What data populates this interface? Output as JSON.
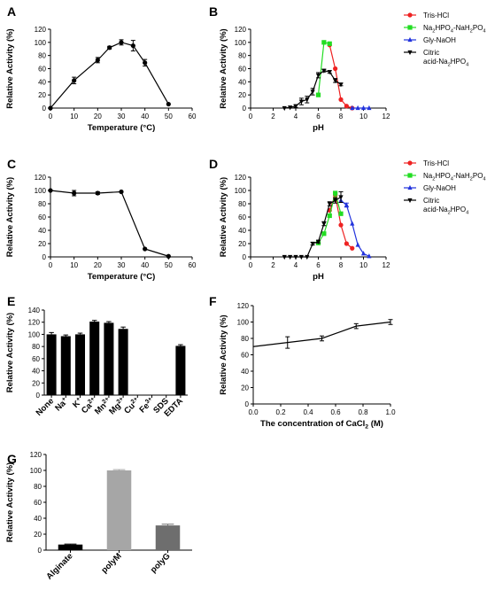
{
  "chart_data": [
    {
      "panel": "A",
      "type": "line",
      "xlabel": "Temperature (°C)",
      "ylabel": "Relative Activity (%)",
      "xlim": [
        0,
        60
      ],
      "ylim": [
        0,
        120
      ],
      "xticks": [
        "0",
        "10",
        "20",
        "30",
        "40",
        "50",
        "60"
      ],
      "yticks": [
        "0",
        "20",
        "40",
        "60",
        "80",
        "100",
        "120"
      ],
      "series": [
        {
          "color": "#000000",
          "marker": "circle",
          "x": [
            0,
            10,
            20,
            25,
            30,
            35,
            40,
            50
          ],
          "y": [
            0,
            42,
            73,
            92,
            100,
            95,
            69,
            6
          ],
          "err": [
            0,
            5,
            4,
            2,
            4,
            8,
            5,
            0
          ]
        }
      ]
    },
    {
      "panel": "B",
      "type": "line",
      "xlabel": "pH",
      "ylabel": "Relative Activity (%)",
      "xlim": [
        0,
        12
      ],
      "ylim": [
        0,
        120
      ],
      "xticks": [
        "0",
        "2",
        "4",
        "6",
        "8",
        "10",
        "12"
      ],
      "yticks": [
        "0",
        "20",
        "40",
        "60",
        "80",
        "100",
        "120"
      ],
      "legend": "right",
      "series": [
        {
          "name": "Tris-HCl",
          "color": "#ee2222",
          "marker": "circle",
          "x": [
            7,
            7.5,
            8,
            8.5,
            9
          ],
          "y": [
            96,
            60,
            13,
            3,
            0
          ],
          "err": [
            0,
            0,
            0,
            0,
            0
          ]
        },
        {
          "name": "Na2HPO4-NaH2PO4",
          "color": "#22dd22",
          "marker": "square",
          "x": [
            6,
            6.5,
            7
          ],
          "y": [
            20,
            100,
            98
          ],
          "err": [
            0,
            0,
            0
          ]
        },
        {
          "name": "Gly-NaOH",
          "color": "#2233dd",
          "marker": "triangle-up",
          "x": [
            9,
            9.5,
            10,
            10.5
          ],
          "y": [
            0,
            0,
            0,
            0
          ],
          "err": [
            0,
            0,
            0,
            0
          ]
        },
        {
          "name": "Citric acid-Na2HPO4",
          "color": "#000000",
          "marker": "triangle-down",
          "x": [
            3,
            3.5,
            4,
            4.5,
            5,
            5.5,
            6,
            6.5,
            7,
            7.5,
            8
          ],
          "y": [
            0,
            1,
            3,
            10,
            13,
            25,
            50,
            57,
            55,
            42,
            36
          ],
          "err": [
            0,
            0,
            2,
            5,
            5,
            5,
            4,
            2,
            2,
            3,
            2
          ]
        }
      ]
    },
    {
      "panel": "C",
      "type": "line",
      "xlabel": "Temperature (°C)",
      "ylabel": "Relative Activity (%)",
      "xlim": [
        0,
        60
      ],
      "ylim": [
        0,
        120
      ],
      "xticks": [
        "0",
        "10",
        "20",
        "30",
        "40",
        "50",
        "60"
      ],
      "yticks": [
        "0",
        "20",
        "40",
        "60",
        "80",
        "100",
        "120"
      ],
      "series": [
        {
          "color": "#000000",
          "marker": "circle",
          "x": [
            0,
            10,
            20,
            30,
            40,
            50
          ],
          "y": [
            100,
            96,
            96,
            98,
            12,
            1
          ],
          "err": [
            0,
            4,
            2,
            0,
            0,
            0
          ]
        }
      ]
    },
    {
      "panel": "D",
      "type": "line",
      "xlabel": "pH",
      "ylabel": "Relative Activity (%)",
      "xlim": [
        0,
        12
      ],
      "ylim": [
        0,
        120
      ],
      "xticks": [
        "0",
        "2",
        "4",
        "6",
        "8",
        "10",
        "12"
      ],
      "yticks": [
        "0",
        "20",
        "40",
        "60",
        "80",
        "100",
        "120"
      ],
      "legend": "right",
      "series": [
        {
          "name": "Tris-HCl",
          "color": "#ee2222",
          "marker": "circle",
          "x": [
            7,
            7.5,
            8,
            8.5,
            9
          ],
          "y": [
            70,
            93,
            48,
            20,
            13
          ],
          "err": [
            0,
            3,
            0,
            0,
            0
          ]
        },
        {
          "name": "Na2HPO4-NaH2PO4",
          "color": "#22dd22",
          "marker": "square",
          "x": [
            6,
            6.5,
            7,
            7.5,
            8
          ],
          "y": [
            21,
            35,
            62,
            96,
            65
          ],
          "err": [
            0,
            0,
            0,
            0,
            0
          ]
        },
        {
          "name": "Gly-NaOH",
          "color": "#2233dd",
          "marker": "triangle-up",
          "x": [
            8,
            8.5,
            9,
            9.5,
            10,
            10.5
          ],
          "y": [
            85,
            78,
            50,
            18,
            5,
            1
          ],
          "err": [
            0,
            3,
            0,
            0,
            0,
            0
          ]
        },
        {
          "name": "Citric acid-Na2HPO4",
          "color": "#000000",
          "marker": "triangle-down",
          "x": [
            3,
            3.5,
            4,
            4.5,
            5,
            5.5,
            6,
            6.5,
            7,
            7.5,
            8
          ],
          "y": [
            0,
            0,
            0,
            0,
            0,
            20,
            23,
            50,
            80,
            85,
            90
          ],
          "err": [
            0,
            0,
            0,
            0,
            0,
            2,
            2,
            3,
            3,
            4,
            8
          ]
        }
      ]
    },
    {
      "panel": "E",
      "type": "bar",
      "xlabel": "",
      "ylabel": "Relative Activity (%)",
      "ylim": [
        0,
        140
      ],
      "yticks": [
        "0",
        "20",
        "40",
        "60",
        "80",
        "100",
        "120",
        "140"
      ],
      "categories": [
        "None",
        "Na+",
        "K+",
        "Ca2+",
        "Mn2+",
        "Mg2+",
        "Cu2+",
        "Fe3+",
        "SDS",
        "EDTA"
      ],
      "values": [
        100,
        97,
        100,
        121,
        119,
        109,
        0,
        0,
        0,
        81
      ],
      "err": [
        3,
        2,
        2,
        2,
        2,
        3,
        0,
        0,
        0,
        2
      ],
      "color": "#000000"
    },
    {
      "panel": "F",
      "type": "line",
      "xlabel": "The concentration of CaCl2 (M)",
      "ylabel": "Relative Activity (%)",
      "xlim": [
        0,
        1
      ],
      "ylim": [
        0,
        120
      ],
      "xticks": [
        "0.0",
        "0.2",
        "0.4",
        "0.6",
        "0.8",
        "1.0"
      ],
      "yticks": [
        "0",
        "20",
        "40",
        "60",
        "80",
        "100",
        "120"
      ],
      "series": [
        {
          "color": "#000000",
          "marker": "none",
          "x": [
            0,
            0.25,
            0.5,
            0.75,
            1.0
          ],
          "y": [
            70,
            75,
            80,
            95,
            100
          ],
          "err": [
            0,
            7,
            3,
            3,
            3
          ]
        }
      ]
    },
    {
      "panel": "G",
      "type": "bar",
      "xlabel": "",
      "ylabel": "Relative Activity (%)",
      "ylim": [
        0,
        120
      ],
      "yticks": [
        "0",
        "20",
        "40",
        "60",
        "80",
        "100",
        "120"
      ],
      "categories": [
        "Alginate",
        "polyM",
        "polyG"
      ],
      "values": [
        7,
        100,
        31
      ],
      "err": [
        0.6,
        1,
        1.5
      ],
      "colors": [
        "#000000",
        "#a6a6a6",
        "#6e6e6e"
      ]
    }
  ]
}
